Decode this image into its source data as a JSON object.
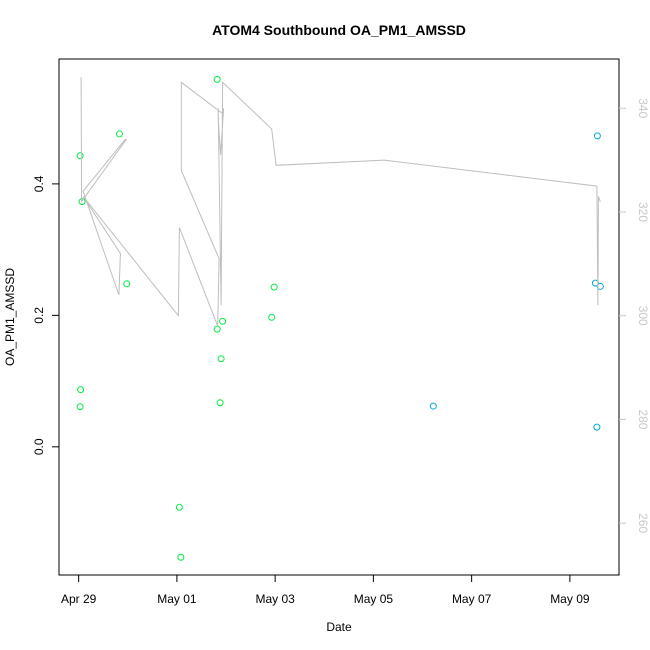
{
  "chart_data": {
    "type": "scatter",
    "title": "ATOM4 Southbound OA_PM1_AMSSD",
    "xlabel": "Date",
    "ylabel": "OA_PM1_AMSSD",
    "x_unit": "days",
    "x_start_date": "2017-04-29",
    "xlim": [
      -0.4,
      11.0
    ],
    "ylim": [
      -0.195,
      0.59
    ],
    "y2lim": [
      250.0,
      349.5
    ],
    "x_ticks": [
      {
        "x": 0,
        "label": "Apr 29"
      },
      {
        "x": 2,
        "label": "May 01"
      },
      {
        "x": 4,
        "label": "May 03"
      },
      {
        "x": 6,
        "label": "May 05"
      },
      {
        "x": 8,
        "label": "May 07"
      },
      {
        "x": 10,
        "label": "May 09"
      }
    ],
    "y_ticks": [
      {
        "y": 0.0,
        "label": "0.0"
      },
      {
        "y": 0.2,
        "label": "0.2"
      },
      {
        "y": 0.4,
        "label": "0.4"
      }
    ],
    "y2_ticks": [
      {
        "y": 260,
        "label": "260"
      },
      {
        "y": 280,
        "label": "280"
      },
      {
        "y": 300,
        "label": "300"
      },
      {
        "y": 320,
        "label": "320"
      },
      {
        "y": 340,
        "label": "340"
      }
    ],
    "series": [
      {
        "name": "",
        "style": "points",
        "color": "#00ee44",
        "points": [
          {
            "x": 0.03,
            "y": 0.443
          },
          {
            "x": 0.07,
            "y": 0.373
          },
          {
            "x": 0.04,
            "y": 0.087
          },
          {
            "x": 0.03,
            "y": 0.061
          },
          {
            "x": 0.83,
            "y": 0.476
          },
          {
            "x": 0.98,
            "y": 0.248
          },
          {
            "x": 2.05,
            "y": -0.092
          },
          {
            "x": 2.08,
            "y": -0.168
          },
          {
            "x": 2.82,
            "y": 0.559
          },
          {
            "x": 2.82,
            "y": 0.179
          },
          {
            "x": 2.88,
            "y": 0.067
          },
          {
            "x": 2.9,
            "y": 0.134
          },
          {
            "x": 2.93,
            "y": 0.191
          },
          {
            "x": 3.93,
            "y": 0.197
          },
          {
            "x": 3.98,
            "y": 0.243
          }
        ]
      },
      {
        "name": "",
        "style": "points",
        "color": "#00aadd",
        "points": [
          {
            "x": 7.22,
            "y": 0.062
          },
          {
            "x": 10.52,
            "y": 0.249
          },
          {
            "x": 10.56,
            "y": 0.473
          },
          {
            "x": 10.55,
            "y": 0.03
          },
          {
            "x": 10.62,
            "y": 0.244
          }
        ]
      },
      {
        "name": "",
        "style": "line",
        "axis": "right",
        "color": "#bebebe",
        "points": [
          {
            "x": 0.05,
            "y": 346
          },
          {
            "x": 0.06,
            "y": 322
          },
          {
            "x": 0.97,
            "y": 334
          },
          {
            "x": 0.95,
            "y": 334
          },
          {
            "x": 0.09,
            "y": 324
          },
          {
            "x": 0.82,
            "y": 304
          },
          {
            "x": 0.85,
            "y": 312
          },
          {
            "x": 0.09,
            "y": 323
          },
          {
            "x": 2.03,
            "y": 300
          },
          {
            "x": 2.05,
            "y": 317
          },
          {
            "x": 2.83,
            "y": 298
          },
          {
            "x": 2.86,
            "y": 311
          },
          {
            "x": 2.09,
            "y": 328
          },
          {
            "x": 2.09,
            "y": 345
          },
          {
            "x": 2.93,
            "y": 339
          },
          {
            "x": 2.95,
            "y": 340
          },
          {
            "x": 2.89,
            "y": 331
          },
          {
            "x": 2.84,
            "y": 338
          },
          {
            "x": 2.84,
            "y": 340
          },
          {
            "x": 2.9,
            "y": 302
          },
          {
            "x": 2.93,
            "y": 345
          },
          {
            "x": 3.93,
            "y": 336
          },
          {
            "x": 4.02,
            "y": 329
          },
          {
            "x": 6.22,
            "y": 330
          },
          {
            "x": 10.55,
            "y": 325
          },
          {
            "x": 10.57,
            "y": 302
          },
          {
            "x": 10.58,
            "y": 323
          },
          {
            "x": 10.62,
            "y": 322
          }
        ]
      }
    ]
  }
}
